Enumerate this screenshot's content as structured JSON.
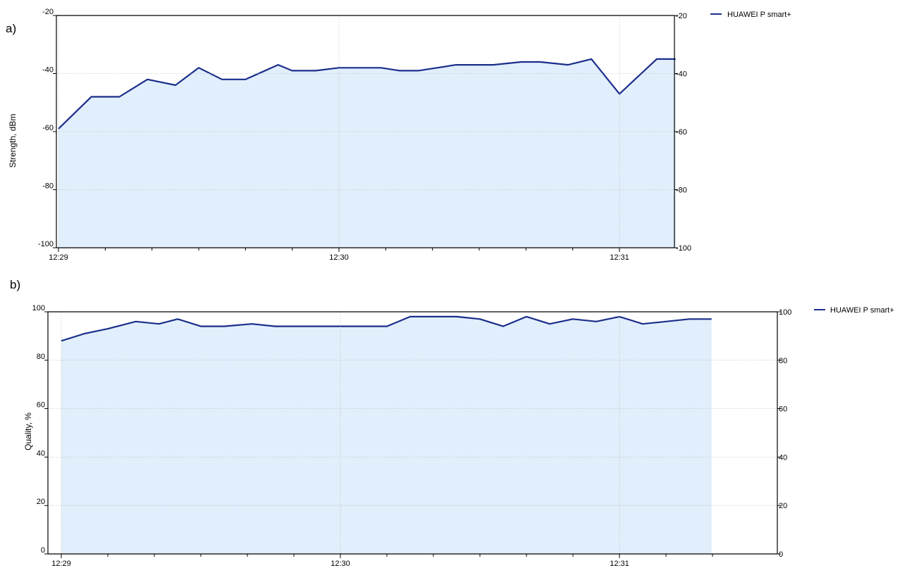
{
  "colors": {
    "line": "#1a2e8a",
    "fill": "#e1eefc",
    "grid": "#b8b8b8",
    "axis": "#000000"
  },
  "chart_data": [
    {
      "type": "area",
      "panel_label": "a)",
      "ylabel": "Strength, dBm",
      "ylim": [
        -100,
        -20
      ],
      "yticks": [
        -20,
        -40,
        -60,
        -80,
        -100
      ],
      "grid": true,
      "right_axis": true,
      "legend_position": "top-right",
      "x_tick_labels": [
        "12:29",
        "12:30",
        "12:31"
      ],
      "x_tick_minutes": [
        0,
        1,
        2
      ],
      "xlim": [
        -0.008,
        2.2
      ],
      "series": [
        {
          "name": "HUAWEI P smart+",
          "x": [
            0,
            0.117,
            0.217,
            0.317,
            0.417,
            0.5,
            0.583,
            0.667,
            0.783,
            0.833,
            0.917,
            1.0,
            1.083,
            1.15,
            1.217,
            1.283,
            1.35,
            1.417,
            1.483,
            1.55,
            1.65,
            1.717,
            1.817,
            1.9,
            2.0,
            2.133,
            2.2
          ],
          "values": [
            -59,
            -48,
            -48,
            -42,
            -44,
            -38,
            -42,
            -42,
            -37,
            -39,
            -39,
            -38,
            -38,
            -38,
            -39,
            -39,
            -38,
            -37,
            -37,
            -37,
            -36,
            -36,
            -37,
            -35,
            -47,
            -35,
            -35
          ]
        }
      ]
    },
    {
      "type": "area",
      "panel_label": "b)",
      "ylabel": "Quality, %",
      "ylim": [
        0,
        100
      ],
      "yticks": [
        100,
        80,
        60,
        40,
        20,
        0
      ],
      "grid": true,
      "right_axis": true,
      "legend_position": "top-right",
      "x_tick_labels": [
        "12:29",
        "12:30",
        "12:31"
      ],
      "x_tick_minutes": [
        0,
        1,
        2
      ],
      "xlim": [
        -0.03,
        2.33
      ],
      "series": [
        {
          "name": "HUAWEI P smart+",
          "x": [
            0,
            0.083,
            0.167,
            0.267,
            0.35,
            0.417,
            0.5,
            0.583,
            0.683,
            0.767,
            0.833,
            0.917,
            1.0,
            1.083,
            1.167,
            1.25,
            1.333,
            1.417,
            1.5,
            1.583,
            1.667,
            1.75,
            1.833,
            1.917,
            2.0,
            2.083,
            2.167,
            2.25,
            2.33
          ],
          "values": [
            88,
            91,
            93,
            96,
            95,
            97,
            94,
            94,
            95,
            94,
            94,
            94,
            94,
            94,
            94,
            98,
            98,
            98,
            97,
            94,
            98,
            95,
            97,
            96,
            98,
            95,
            96,
            97,
            97
          ]
        }
      ]
    }
  ]
}
